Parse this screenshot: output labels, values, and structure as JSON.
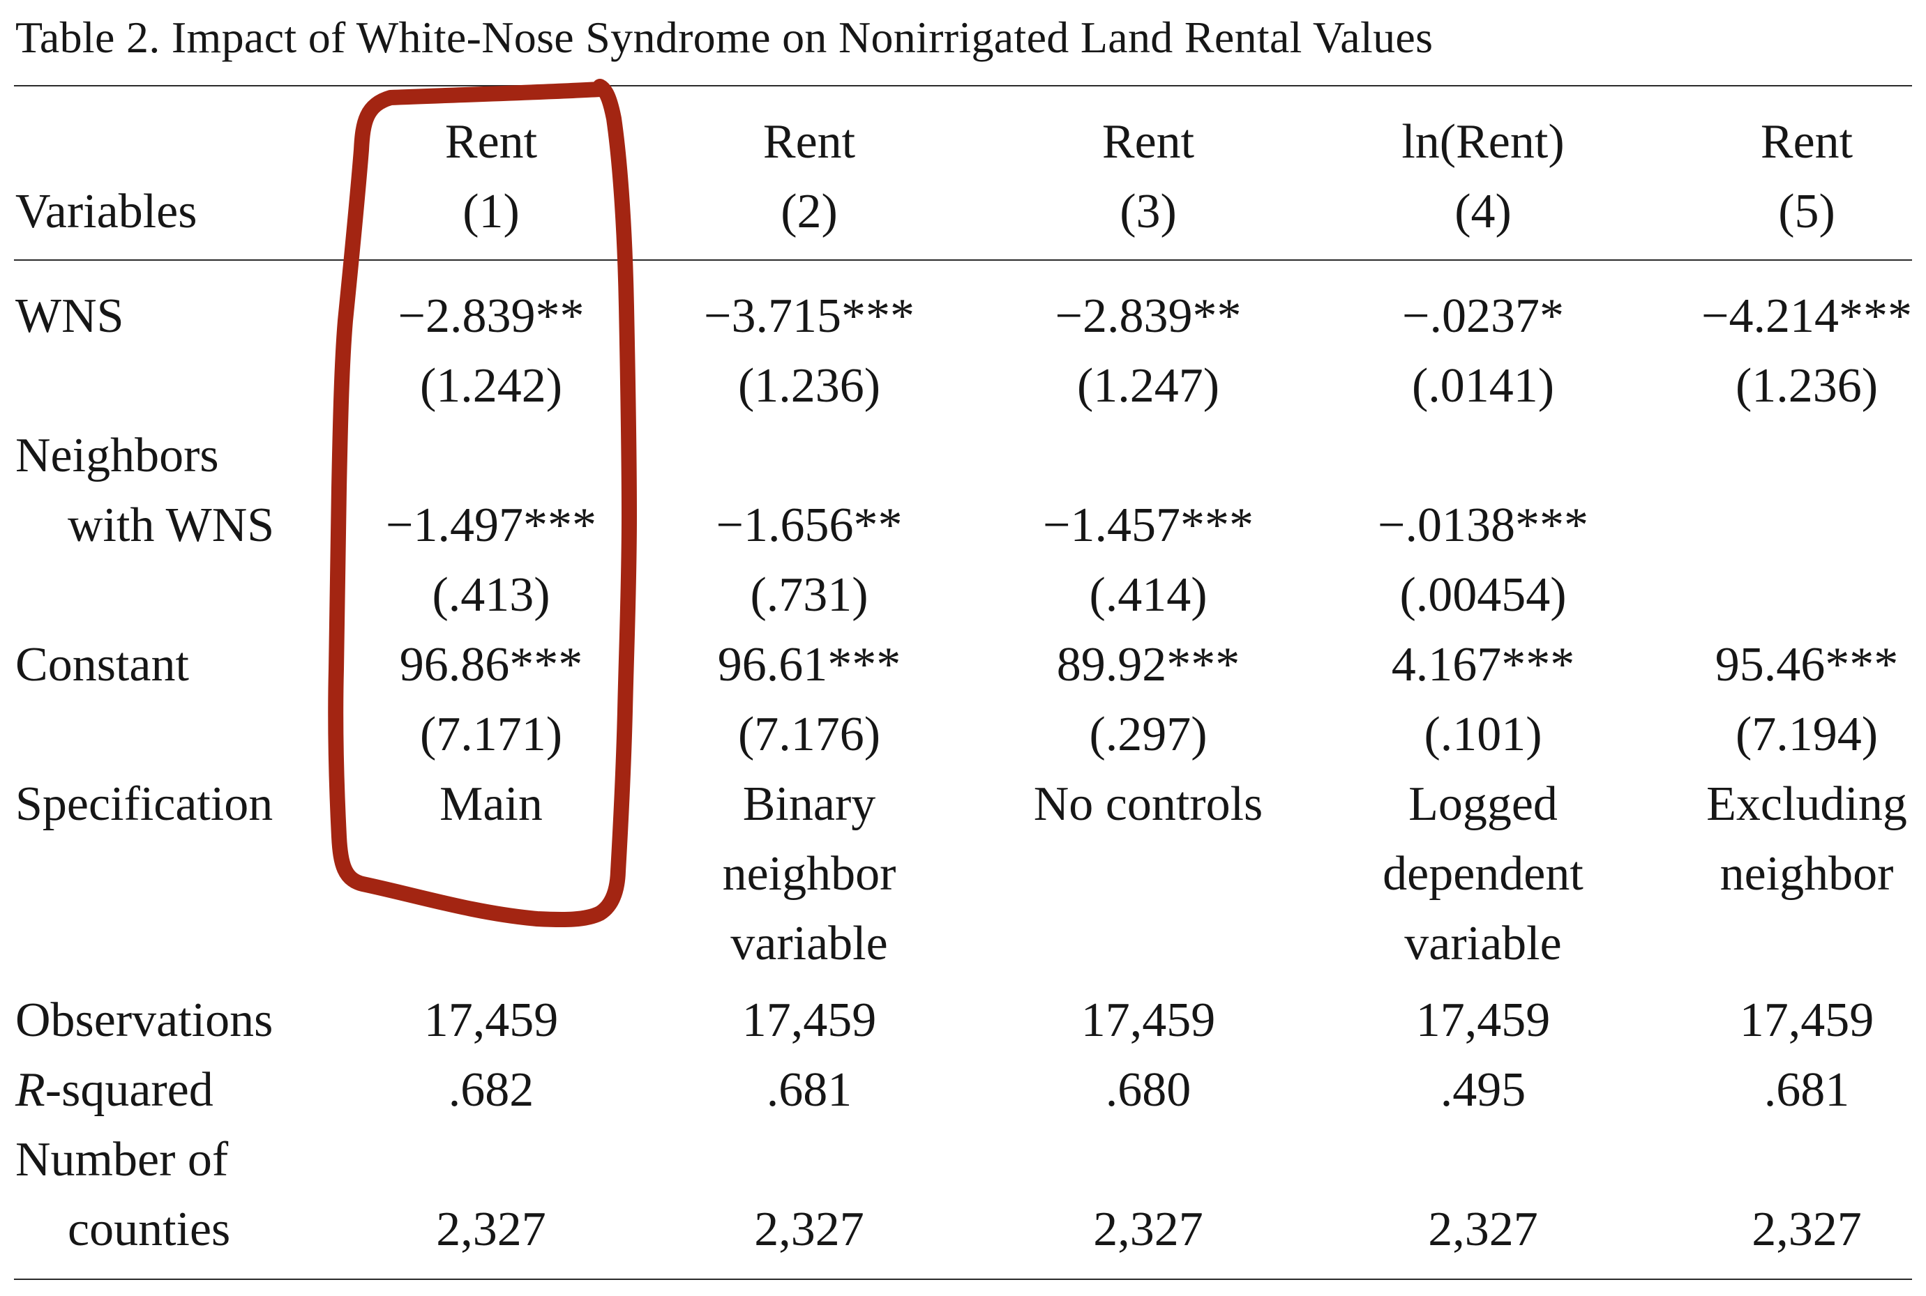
{
  "title": "Table 2. Impact of White-Nose Syndrome on Nonirrigated Land Rental Values",
  "header": {
    "variables_label": "Variables",
    "columns": [
      {
        "dep": "Rent",
        "num": "(1)"
      },
      {
        "dep": "Rent",
        "num": "(2)"
      },
      {
        "dep": "Rent",
        "num": "(3)"
      },
      {
        "dep": "ln(Rent)",
        "num": "(4)"
      },
      {
        "dep": "Rent",
        "num": "(5)"
      }
    ]
  },
  "rows": {
    "wns": {
      "label": "WNS",
      "coef": [
        "−2.839**",
        "−3.715***",
        "−2.839**",
        "−.0237*",
        "−4.214***"
      ],
      "se": [
        "(1.242)",
        "(1.236)",
        "(1.247)",
        "(.0141)",
        "(1.236)"
      ]
    },
    "neighbors": {
      "label_line1": "Neighbors",
      "label_line2": "with WNS",
      "coef": [
        "−1.497***",
        "−1.656**",
        "−1.457***",
        "−.0138***",
        ""
      ],
      "se": [
        "(.413)",
        "(.731)",
        "(.414)",
        "(.00454)",
        ""
      ]
    },
    "constant": {
      "label": "Constant",
      "coef": [
        "96.86***",
        "96.61***",
        "89.92***",
        "4.167***",
        "95.46***"
      ],
      "se": [
        "(7.171)",
        "(7.176)",
        "(.297)",
        "(.101)",
        "(7.194)"
      ]
    },
    "specification": {
      "label": "Specification",
      "values": [
        [
          "Main"
        ],
        [
          "Binary",
          "neighbor",
          "variable"
        ],
        [
          "No controls"
        ],
        [
          "Logged",
          "dependent",
          "variable"
        ],
        [
          "Excluding",
          "neighbor"
        ]
      ]
    },
    "observations": {
      "label": "Observations",
      "values": [
        "17,459",
        "17,459",
        "17,459",
        "17,459",
        "17,459"
      ]
    },
    "r_squared": {
      "label_italic": "R",
      "label_rest": "-squared",
      "values": [
        ".682",
        ".681",
        ".680",
        ".495",
        ".681"
      ]
    },
    "counties": {
      "label_line1": "Number of",
      "label_line2": "counties",
      "values": [
        "2,327",
        "2,327",
        "2,327",
        "2,327",
        "2,327"
      ]
    }
  },
  "annotation": {
    "color": "#a32512",
    "target": "column (1)"
  }
}
